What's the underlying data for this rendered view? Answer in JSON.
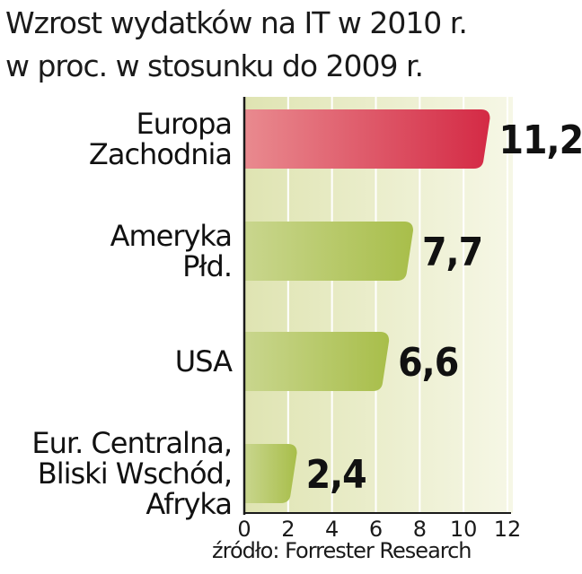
{
  "title_lines": [
    "Wzrost wydatków na IT w 2010 r.",
    "w proc. w stosunku do 2009 r."
  ],
  "source": "źródło: Forrester Research",
  "colors": {
    "background_band": "#e9ecc8",
    "bar_green": "#a8be4a",
    "bar_highlight": "#d42a45",
    "grid": "#ffffff",
    "axis": "#1a1a1a"
  },
  "chart_data": {
    "type": "bar",
    "orientation": "horizontal",
    "title": "Wzrost wydatków na IT w 2010 r. w proc. w stosunku do 2009 r.",
    "categories": [
      [
        "Europa",
        "Zachodnia"
      ],
      [
        "Ameryka",
        "Płd."
      ],
      [
        "USA"
      ],
      [
        "Eur. Centralna,",
        "Bliski Wschód,",
        "Afryka"
      ]
    ],
    "values": [
      11.2,
      7.7,
      6.6,
      2.4
    ],
    "value_labels": [
      "11,2",
      "7,7",
      "6,6",
      "2,4"
    ],
    "highlight_index": 0,
    "xlim": [
      0,
      12
    ],
    "xticks": [
      0,
      2,
      4,
      6,
      8,
      10,
      12
    ],
    "grid": true,
    "legend": "none"
  }
}
